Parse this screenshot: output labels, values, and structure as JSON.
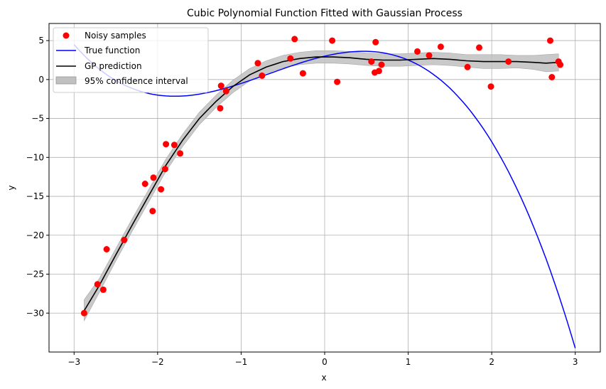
{
  "chart_data": {
    "type": "scatter",
    "title": "Cubic Polynomial Function Fitted with Gaussian Process",
    "xlabel": "x",
    "ylabel": "y",
    "xlim": [
      -3.3,
      3.3
    ],
    "ylim": [
      -35,
      7.2
    ],
    "xticks": [
      -3,
      -2,
      -1,
      0,
      1,
      2,
      3
    ],
    "yticks": [
      5,
      0,
      -5,
      -10,
      -15,
      -20,
      -25,
      -30
    ],
    "grid": true,
    "legend_position": "top-left",
    "legend": [
      "Noisy samples",
      "True function",
      "GP prediction",
      "95% confidence interval"
    ],
    "colors": {
      "samples": "#ff0000",
      "true_function": "#0000ff",
      "gp_prediction": "#000000",
      "confidence": "#c0c0c0"
    },
    "samples": [
      {
        "x": -2.88,
        "y": -30.0
      },
      {
        "x": -2.72,
        "y": -26.3
      },
      {
        "x": -2.65,
        "y": -27.0
      },
      {
        "x": -2.61,
        "y": -21.8
      },
      {
        "x": -2.4,
        "y": -20.6
      },
      {
        "x": -2.15,
        "y": -13.4
      },
      {
        "x": -2.06,
        "y": -16.9
      },
      {
        "x": -2.05,
        "y": -12.6
      },
      {
        "x": -1.96,
        "y": -14.1
      },
      {
        "x": -1.91,
        "y": -11.5
      },
      {
        "x": -1.9,
        "y": -8.3
      },
      {
        "x": -1.8,
        "y": -8.4
      },
      {
        "x": -1.73,
        "y": -9.5
      },
      {
        "x": -1.25,
        "y": -3.7
      },
      {
        "x": -1.24,
        "y": -0.8
      },
      {
        "x": -1.18,
        "y": -1.5
      },
      {
        "x": -0.8,
        "y": 2.1
      },
      {
        "x": -0.75,
        "y": 0.5
      },
      {
        "x": -0.41,
        "y": 2.7
      },
      {
        "x": -0.36,
        "y": 5.2
      },
      {
        "x": -0.26,
        "y": 0.8
      },
      {
        "x": 0.09,
        "y": 5.0
      },
      {
        "x": 0.15,
        "y": -0.3
      },
      {
        "x": 0.56,
        "y": 2.3
      },
      {
        "x": 0.6,
        "y": 0.9
      },
      {
        "x": 0.61,
        "y": 4.8
      },
      {
        "x": 0.65,
        "y": 1.1
      },
      {
        "x": 0.68,
        "y": 1.9
      },
      {
        "x": 1.11,
        "y": 3.6
      },
      {
        "x": 1.25,
        "y": 3.1
      },
      {
        "x": 1.39,
        "y": 4.2
      },
      {
        "x": 1.71,
        "y": 1.6
      },
      {
        "x": 1.85,
        "y": 4.1
      },
      {
        "x": 1.99,
        "y": -0.9
      },
      {
        "x": 2.2,
        "y": 2.3
      },
      {
        "x": 2.7,
        "y": 5.0
      },
      {
        "x": 2.72,
        "y": 0.3
      },
      {
        "x": 2.8,
        "y": 2.3
      },
      {
        "x": 2.82,
        "y": 1.9
      }
    ],
    "true_function": {
      "x_min": -3.0,
      "x_max": 3.0,
      "coefficients": [
        -1.0,
        -2.0,
        2.5,
        3.0
      ]
    },
    "gp_prediction": [
      {
        "x": -2.88,
        "y": -29.7,
        "lo": -31.0,
        "hi": -28.3
      },
      {
        "x": -2.7,
        "y": -26.5,
        "lo": -27.4,
        "hi": -25.6
      },
      {
        "x": -2.5,
        "y": -22.5,
        "lo": -23.3,
        "hi": -21.7
      },
      {
        "x": -2.3,
        "y": -18.6,
        "lo": -19.4,
        "hi": -17.8
      },
      {
        "x": -2.1,
        "y": -14.8,
        "lo": -15.6,
        "hi": -14.0
      },
      {
        "x": -1.9,
        "y": -11.0,
        "lo": -11.8,
        "hi": -10.2
      },
      {
        "x": -1.7,
        "y": -7.8,
        "lo": -8.6,
        "hi": -7.0
      },
      {
        "x": -1.5,
        "y": -5.0,
        "lo": -5.8,
        "hi": -4.2
      },
      {
        "x": -1.3,
        "y": -2.8,
        "lo": -3.6,
        "hi": -2.0
      },
      {
        "x": -1.1,
        "y": -0.9,
        "lo": -1.7,
        "hi": -0.1
      },
      {
        "x": -0.9,
        "y": 0.6,
        "lo": -0.2,
        "hi": 1.4
      },
      {
        "x": -0.7,
        "y": 1.6,
        "lo": 0.8,
        "hi": 2.4
      },
      {
        "x": -0.5,
        "y": 2.3,
        "lo": 1.5,
        "hi": 3.1
      },
      {
        "x": -0.3,
        "y": 2.7,
        "lo": 1.9,
        "hi": 3.5
      },
      {
        "x": -0.1,
        "y": 2.9,
        "lo": 2.1,
        "hi": 3.7
      },
      {
        "x": 0.1,
        "y": 2.9,
        "lo": 2.1,
        "hi": 3.7
      },
      {
        "x": 0.3,
        "y": 2.8,
        "lo": 2.0,
        "hi": 3.6
      },
      {
        "x": 0.5,
        "y": 2.6,
        "lo": 1.8,
        "hi": 3.4
      },
      {
        "x": 0.7,
        "y": 2.5,
        "lo": 1.7,
        "hi": 3.3
      },
      {
        "x": 0.9,
        "y": 2.5,
        "lo": 1.7,
        "hi": 3.3
      },
      {
        "x": 1.1,
        "y": 2.6,
        "lo": 1.8,
        "hi": 3.4
      },
      {
        "x": 1.3,
        "y": 2.7,
        "lo": 1.9,
        "hi": 3.5
      },
      {
        "x": 1.5,
        "y": 2.6,
        "lo": 1.8,
        "hi": 3.4
      },
      {
        "x": 1.7,
        "y": 2.4,
        "lo": 1.6,
        "hi": 3.2
      },
      {
        "x": 1.9,
        "y": 2.3,
        "lo": 1.4,
        "hi": 3.2
      },
      {
        "x": 2.1,
        "y": 2.3,
        "lo": 1.4,
        "hi": 3.2
      },
      {
        "x": 2.3,
        "y": 2.3,
        "lo": 1.5,
        "hi": 3.1
      },
      {
        "x": 2.5,
        "y": 2.2,
        "lo": 1.3,
        "hi": 3.1
      },
      {
        "x": 2.65,
        "y": 2.1,
        "lo": 1.0,
        "hi": 3.2
      },
      {
        "x": 2.8,
        "y": 2.2,
        "lo": 1.1,
        "hi": 3.3
      }
    ]
  }
}
